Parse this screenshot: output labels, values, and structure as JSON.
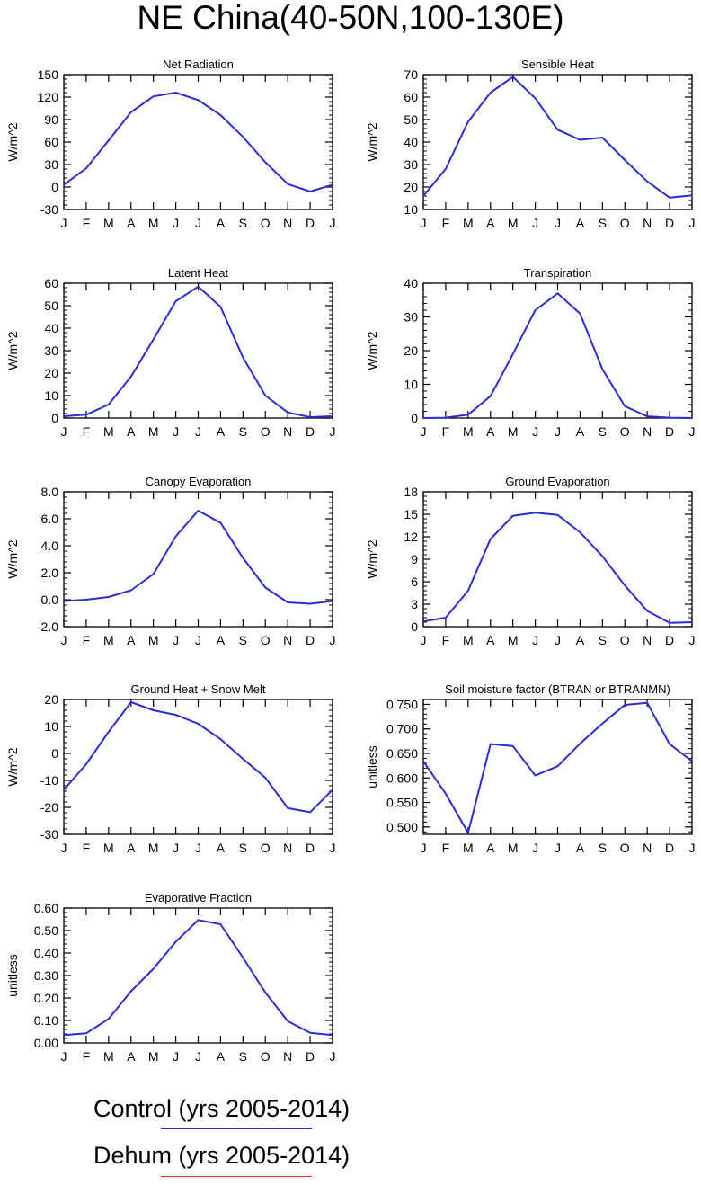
{
  "page": {
    "title": "NE China(40-50N,100-130E)"
  },
  "legend": [
    {
      "name": "Control (yrs 2005-2014)",
      "color": "#2b2bd9"
    },
    {
      "name": "Dehum (yrs 2005-2014)",
      "color": "#ff2a2a"
    }
  ],
  "chart_data": [
    {
      "type": "line",
      "title": "Net Radiation",
      "ylabel": "W/m^2",
      "categories": [
        "J",
        "F",
        "M",
        "A",
        "M",
        "J",
        "J",
        "A",
        "S",
        "O",
        "N",
        "D",
        "J"
      ],
      "ylim": [
        -30,
        150
      ],
      "yticks": [
        -30,
        0,
        30,
        60,
        90,
        120,
        150
      ],
      "yticklabels": [
        "-30",
        "0",
        "30",
        "60",
        "90",
        "120",
        "150"
      ],
      "series": [
        {
          "values": [
            3,
            25,
            62,
            100,
            121,
            126,
            116,
            96,
            67,
            33,
            4,
            -6,
            3
          ],
          "color": "#2b2bd9"
        }
      ]
    },
    {
      "type": "line",
      "title": "Sensible Heat",
      "ylabel": "W/m^2",
      "categories": [
        "J",
        "F",
        "M",
        "A",
        "M",
        "J",
        "J",
        "A",
        "S",
        "O",
        "N",
        "D",
        "J"
      ],
      "ylim": [
        10,
        70
      ],
      "yticks": [
        10,
        20,
        30,
        40,
        50,
        60,
        70
      ],
      "yticklabels": [
        "10",
        "20",
        "30",
        "40",
        "50",
        "60",
        "70"
      ],
      "series": [
        {
          "values": [
            16,
            28,
            49,
            62,
            69,
            59.5,
            45.5,
            41,
            42,
            32,
            22.5,
            15.3,
            16.3
          ],
          "color": "#2b2bd9"
        }
      ]
    },
    {
      "type": "line",
      "title": "Latent Heat",
      "ylabel": "W/m^2",
      "categories": [
        "J",
        "F",
        "M",
        "A",
        "M",
        "J",
        "J",
        "A",
        "S",
        "O",
        "N",
        "D",
        "J"
      ],
      "ylim": [
        0,
        60
      ],
      "yticks": [
        0,
        10,
        20,
        30,
        40,
        50,
        60
      ],
      "yticklabels": [
        "0",
        "10",
        "20",
        "30",
        "40",
        "50",
        "60"
      ],
      "series": [
        {
          "values": [
            0.8,
            1.5,
            6,
            18.5,
            35,
            52,
            58.5,
            49.5,
            27,
            10,
            2.5,
            0.4,
            0.8
          ],
          "color": "#2b2bd9"
        }
      ]
    },
    {
      "type": "line",
      "title": "Transpiration",
      "ylabel": "W/m^2",
      "categories": [
        "J",
        "F",
        "M",
        "A",
        "M",
        "J",
        "J",
        "A",
        "S",
        "O",
        "N",
        "D",
        "J"
      ],
      "ylim": [
        0,
        40
      ],
      "yticks": [
        0,
        10,
        20,
        30,
        40
      ],
      "yticklabels": [
        "0",
        "10",
        "20",
        "30",
        "40"
      ],
      "series": [
        {
          "values": [
            0,
            0.1,
            1,
            6.5,
            19,
            32,
            37,
            31,
            14.5,
            3.5,
            0.5,
            0.1,
            0
          ],
          "color": "#2b2bd9"
        }
      ]
    },
    {
      "type": "line",
      "title": "Canopy Evaporation",
      "ylabel": "W/m^2",
      "categories": [
        "J",
        "F",
        "M",
        "A",
        "M",
        "J",
        "J",
        "A",
        "S",
        "O",
        "N",
        "D",
        "J"
      ],
      "ylim": [
        -2,
        8
      ],
      "yticks": [
        -2,
        0,
        2,
        4,
        6,
        8
      ],
      "yticklabels": [
        "-2.0",
        "0.0",
        "2.0",
        "4.0",
        "6.0",
        "8.0"
      ],
      "series": [
        {
          "values": [
            -0.1,
            0,
            0.2,
            0.7,
            1.9,
            4.7,
            6.6,
            5.7,
            3.1,
            0.9,
            -0.2,
            -0.3,
            -0.1
          ],
          "color": "#2b2bd9"
        }
      ]
    },
    {
      "type": "line",
      "title": "Ground Evaporation",
      "ylabel": "W/m^2",
      "categories": [
        "J",
        "F",
        "M",
        "A",
        "M",
        "J",
        "J",
        "A",
        "S",
        "O",
        "N",
        "D",
        "J"
      ],
      "ylim": [
        0,
        18
      ],
      "yticks": [
        0,
        3,
        6,
        9,
        12,
        15,
        18
      ],
      "yticklabels": [
        "0",
        "3",
        "6",
        "9",
        "12",
        "15",
        "18"
      ],
      "series": [
        {
          "values": [
            0.7,
            1.2,
            4.8,
            11.7,
            14.8,
            15.2,
            14.9,
            12.6,
            9.4,
            5.5,
            2.1,
            0.5,
            0.6
          ],
          "color": "#2b2bd9"
        }
      ]
    },
    {
      "type": "line",
      "title": "Ground Heat + Snow Melt",
      "ylabel": "W/m^2",
      "categories": [
        "J",
        "F",
        "M",
        "A",
        "M",
        "J",
        "J",
        "A",
        "S",
        "O",
        "N",
        "D",
        "J"
      ],
      "ylim": [
        -30,
        20
      ],
      "yticks": [
        -30,
        -20,
        -10,
        0,
        10,
        20
      ],
      "yticklabels": [
        "-30",
        "-20",
        "-10",
        "0",
        "10",
        "20"
      ],
      "series": [
        {
          "values": [
            -13.5,
            -4,
            8,
            19,
            16,
            14.3,
            11,
            5.3,
            -2,
            -9,
            -20.3,
            -21.8,
            -13.5
          ],
          "color": "#2b2bd9"
        }
      ]
    },
    {
      "type": "line",
      "title": "Soil moisture factor (BTRAN or BTRANMN)",
      "ylabel": "unitless",
      "categories": [
        "J",
        "F",
        "M",
        "A",
        "M",
        "J",
        "J",
        "A",
        "S",
        "O",
        "N",
        "D",
        "J"
      ],
      "ylim": [
        0.485,
        0.76
      ],
      "yticks": [
        0.5,
        0.55,
        0.6,
        0.65,
        0.7,
        0.75
      ],
      "yticklabels": [
        "0.500",
        "0.550",
        "0.600",
        "0.650",
        "0.700",
        "0.750"
      ],
      "series": [
        {
          "values": [
            0.634,
            0.568,
            0.488,
            0.669,
            0.665,
            0.605,
            0.624,
            0.67,
            0.711,
            0.749,
            0.753,
            0.669,
            0.634
          ],
          "color": "#2b2bd9"
        }
      ]
    },
    {
      "type": "line",
      "title": "Evaporative Fraction",
      "ylabel": "unitless",
      "categories": [
        "J",
        "F",
        "M",
        "A",
        "M",
        "J",
        "J",
        "A",
        "S",
        "O",
        "N",
        "D",
        "J"
      ],
      "ylim": [
        0,
        0.6
      ],
      "yticks": [
        0,
        0.1,
        0.2,
        0.3,
        0.4,
        0.5,
        0.6
      ],
      "yticklabels": [
        "0.00",
        "0.10",
        "0.20",
        "0.30",
        "0.40",
        "0.50",
        "0.60"
      ],
      "series": [
        {
          "values": [
            0.035,
            0.043,
            0.107,
            0.23,
            0.33,
            0.45,
            0.547,
            0.528,
            0.38,
            0.224,
            0.097,
            0.045,
            0.035
          ],
          "color": "#2b2bd9"
        }
      ]
    }
  ]
}
